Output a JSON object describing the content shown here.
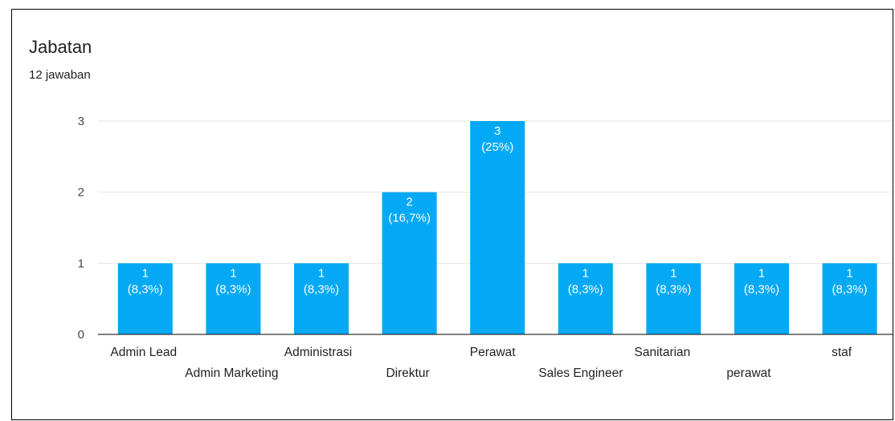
{
  "header": {
    "title": "Jabatan",
    "subtitle": "12 jawaban"
  },
  "colors": {
    "bar": "#03a9f4",
    "grid": "#e6e6e6",
    "axis": "#333333"
  },
  "chart_data": {
    "type": "bar",
    "categories": [
      "Admin Lead",
      "Admin Marketing",
      "Administrasi",
      "Direktur",
      "Perawat",
      "Sales Engineer",
      "Sanitarian",
      "perawat",
      "staf"
    ],
    "values": [
      1,
      1,
      1,
      2,
      3,
      1,
      1,
      1,
      1
    ],
    "value_labels": [
      "1",
      "1",
      "1",
      "2",
      "3",
      "1",
      "1",
      "1",
      "1"
    ],
    "percent_labels": [
      "(8,3%)",
      "(8,3%)",
      "(8,3%)",
      "(16,7%)",
      "(25%)",
      "(8,3%)",
      "(8,3%)",
      "(8,3%)",
      "(8,3%)"
    ],
    "y_ticks": [
      0,
      1,
      2,
      3
    ],
    "ylim": [
      0,
      3
    ],
    "grid": true,
    "legend": "none"
  }
}
